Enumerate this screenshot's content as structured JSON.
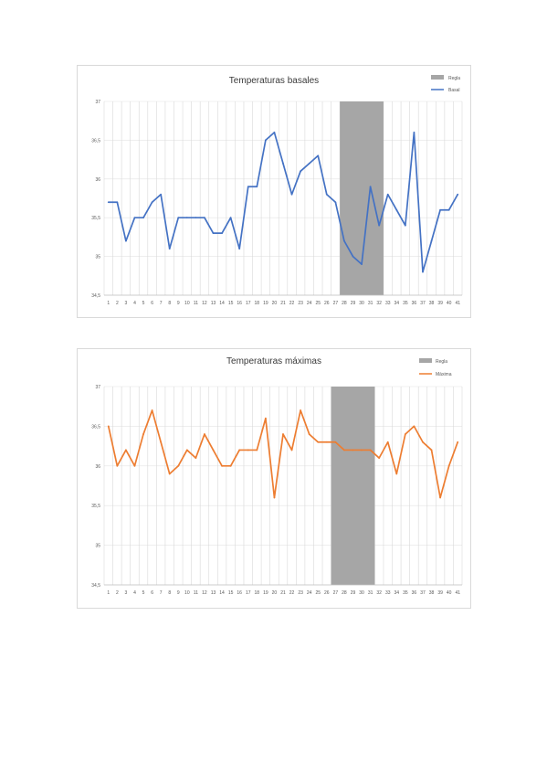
{
  "chart_data": [
    {
      "type": "line",
      "title": "Temperaturas basales",
      "legend": {
        "position": "top-right",
        "entries": [
          "Regla",
          "Basal"
        ]
      },
      "x": [
        1,
        2,
        3,
        4,
        5,
        6,
        7,
        8,
        9,
        10,
        11,
        12,
        13,
        14,
        15,
        16,
        17,
        18,
        19,
        20,
        21,
        22,
        23,
        24,
        25,
        26,
        27,
        28,
        29,
        30,
        31,
        32,
        33,
        34,
        35,
        36,
        37,
        38,
        39,
        40,
        41
      ],
      "ylim": [
        34.5,
        37
      ],
      "yticks": [
        "34,5",
        "35",
        "35,5",
        "36",
        "36,5",
        "37"
      ],
      "grid": true,
      "band": {
        "name": "Regla",
        "x_from": 27.5,
        "x_to": 32.5,
        "color": "#a6a6a6"
      },
      "series": [
        {
          "name": "Basal",
          "color": "#4472c4",
          "values": [
            35.7,
            35.7,
            35.2,
            35.5,
            35.5,
            35.7,
            35.8,
            35.1,
            35.5,
            35.5,
            35.5,
            35.5,
            35.3,
            35.3,
            35.5,
            35.1,
            35.9,
            35.9,
            36.5,
            36.6,
            36.2,
            35.8,
            36.1,
            36.2,
            36.3,
            35.8,
            35.7,
            35.2,
            35.0,
            34.9,
            35.9,
            35.4,
            35.8,
            35.6,
            35.4,
            36.6,
            34.8,
            35.2,
            35.6,
            35.6,
            35.8
          ]
        }
      ]
    },
    {
      "type": "line",
      "title": "Temperaturas máximas",
      "legend": {
        "position": "top-right",
        "entries": [
          "Regla",
          "Máxima"
        ]
      },
      "x": [
        1,
        2,
        3,
        4,
        5,
        6,
        7,
        8,
        9,
        10,
        11,
        12,
        13,
        14,
        15,
        16,
        17,
        18,
        19,
        20,
        21,
        22,
        23,
        24,
        25,
        26,
        27,
        28,
        29,
        30,
        31,
        32,
        33,
        34,
        35,
        36,
        37,
        38,
        39,
        40,
        41
      ],
      "ylim": [
        34.5,
        37
      ],
      "yticks": [
        "34,5",
        "35",
        "35,5",
        "36",
        "36,5",
        "37"
      ],
      "grid": true,
      "band": {
        "name": "Regla",
        "x_from": 26.5,
        "x_to": 31.5,
        "color": "#a6a6a6"
      },
      "series": [
        {
          "name": "Máxima",
          "color": "#ed7d31",
          "values": [
            36.5,
            36.0,
            36.2,
            36.0,
            36.4,
            36.7,
            36.3,
            35.9,
            36.0,
            36.2,
            36.1,
            36.4,
            36.2,
            36.0,
            36.0,
            36.2,
            36.2,
            36.2,
            36.6,
            35.6,
            36.4,
            36.2,
            36.7,
            36.4,
            36.3,
            36.3,
            36.3,
            36.2,
            36.2,
            36.2,
            36.2,
            36.1,
            36.3,
            35.9,
            36.4,
            36.5,
            36.3,
            36.2,
            35.6,
            36.0,
            36.3
          ]
        }
      ]
    }
  ]
}
